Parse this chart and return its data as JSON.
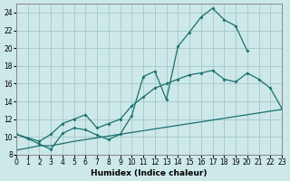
{
  "xlabel": "Humidex (Indice chaleur)",
  "bg_color": "#cde8e8",
  "grid_color": "#aacccc",
  "line_color": "#1a7070",
  "xlim": [
    0,
    23
  ],
  "ylim": [
    8,
    25
  ],
  "xticks": [
    0,
    1,
    2,
    3,
    4,
    5,
    6,
    7,
    8,
    9,
    10,
    11,
    12,
    13,
    14,
    15,
    16,
    17,
    18,
    19,
    20,
    21,
    22,
    23
  ],
  "yticks": [
    8,
    10,
    12,
    14,
    16,
    18,
    20,
    22,
    24
  ],
  "line1_x": [
    0,
    1,
    2,
    3,
    4,
    5,
    6,
    7,
    8,
    9,
    10,
    11,
    12,
    13,
    14,
    15,
    16,
    17,
    18,
    19,
    20
  ],
  "line1_y": [
    10.3,
    9.8,
    9.2,
    8.6,
    10.4,
    11.0,
    10.8,
    10.2,
    9.7,
    10.3,
    12.4,
    16.8,
    17.4,
    14.2,
    20.2,
    21.8,
    23.5,
    24.5,
    23.2,
    22.5,
    19.7
  ],
  "line2_x": [
    0,
    2,
    3,
    4,
    5,
    6,
    7,
    8,
    9,
    10,
    11,
    12,
    13,
    14,
    15,
    16,
    17,
    18,
    19,
    20,
    21,
    22,
    23
  ],
  "line2_y": [
    10.3,
    9.5,
    10.3,
    11.5,
    12.0,
    12.5,
    11.0,
    11.5,
    12.0,
    13.5,
    14.5,
    15.5,
    16.0,
    16.5,
    17.0,
    17.2,
    17.5,
    16.5,
    16.2,
    17.2,
    16.5,
    15.5,
    13.2
  ],
  "line3_x": [
    0,
    1,
    2,
    3,
    4,
    5,
    6,
    7,
    8,
    9,
    10,
    11,
    12,
    13,
    14,
    15,
    16,
    17,
    18,
    19,
    20,
    21,
    22,
    23
  ],
  "line3_y": [
    8.5,
    8.75,
    9.0,
    9.0,
    9.25,
    9.5,
    9.7,
    9.9,
    10.1,
    10.3,
    10.5,
    10.7,
    10.9,
    11.1,
    11.3,
    11.5,
    11.7,
    11.9,
    12.1,
    12.3,
    12.5,
    12.7,
    12.9,
    13.1
  ]
}
